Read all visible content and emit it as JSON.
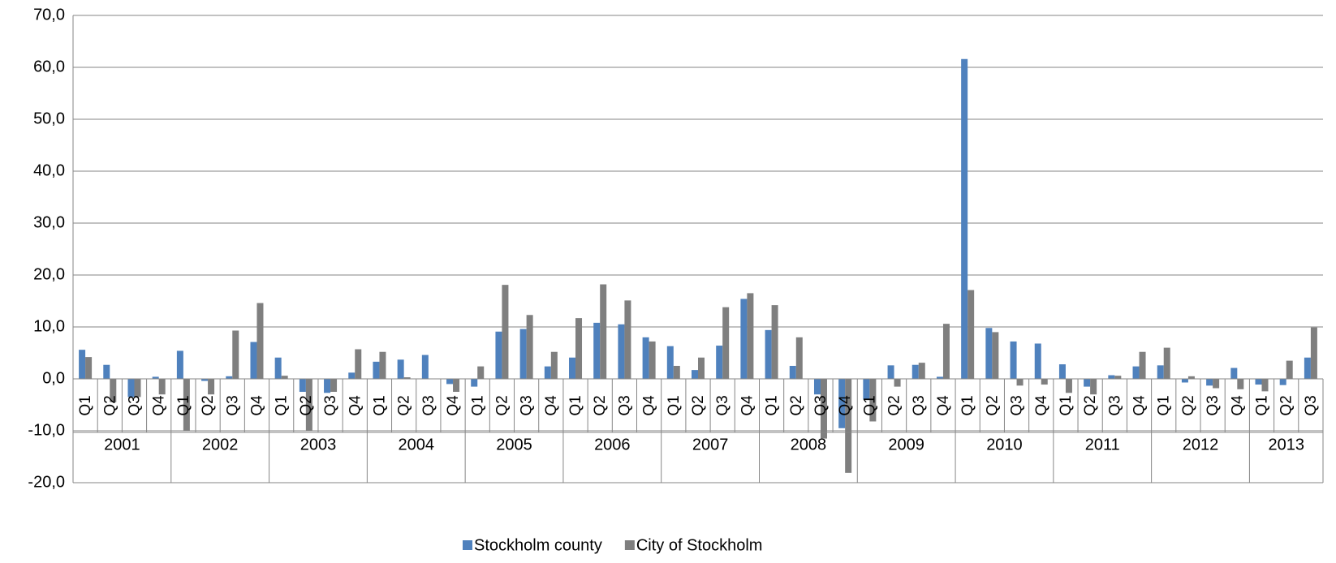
{
  "chart_data": {
    "type": "bar",
    "categories": [
      "Q1",
      "Q2",
      "Q3",
      "Q4",
      "Q1",
      "Q2",
      "Q3",
      "Q4",
      "Q1",
      "Q2",
      "Q3",
      "Q4",
      "Q1",
      "Q2",
      "Q3",
      "Q4",
      "Q1",
      "Q2",
      "Q3",
      "Q4",
      "Q1",
      "Q2",
      "Q3",
      "Q4",
      "Q1",
      "Q2",
      "Q3",
      "Q4",
      "Q1",
      "Q2",
      "Q3",
      "Q4",
      "Q1",
      "Q2",
      "Q3",
      "Q4",
      "Q1",
      "Q2",
      "Q3",
      "Q4",
      "Q1",
      "Q2",
      "Q3",
      "Q4",
      "Q1",
      "Q2",
      "Q3",
      "Q4",
      "Q1",
      "Q2",
      "Q3"
    ],
    "years": [
      "2001",
      "2002",
      "2003",
      "2004",
      "2005",
      "2006",
      "2007",
      "2008",
      "2009",
      "2010",
      "2011",
      "2012",
      "2013"
    ],
    "series": [
      {
        "name": "Stockholm county",
        "color": "#4f81bd",
        "values": [
          5.6,
          2.7,
          -3.5,
          0.4,
          5.4,
          -0.4,
          0.5,
          7.1,
          4.1,
          -2.5,
          -2.7,
          1.2,
          3.3,
          3.7,
          4.6,
          -1.0,
          -1.5,
          9.1,
          9.6,
          2.4,
          4.1,
          10.8,
          10.5,
          8.0,
          6.3,
          1.7,
          6.4,
          15.4,
          9.4,
          2.5,
          -3.0,
          -9.5,
          -4.0,
          2.6,
          2.7,
          0.4,
          61.6,
          9.8,
          7.2,
          6.8,
          2.8,
          -1.5,
          0.7,
          2.4,
          2.6,
          -0.7,
          -1.3,
          2.1,
          -1.1,
          -1.2,
          4.1
        ]
      },
      {
        "name": "City of Stockholm",
        "color": "#7f7f7f",
        "values": [
          4.2,
          -4.5,
          -3.5,
          -3.0,
          -10.0,
          -3.0,
          9.3,
          14.6,
          0.6,
          -10.0,
          -2.5,
          5.7,
          5.2,
          0.3,
          0.0,
          -2.5,
          2.4,
          18.1,
          12.3,
          5.2,
          11.7,
          18.2,
          15.1,
          7.2,
          2.5,
          4.1,
          13.8,
          16.5,
          14.2,
          8.0,
          -11.5,
          -18.1,
          -8.2,
          -1.5,
          3.1,
          10.6,
          17.1,
          9.0,
          -1.3,
          -1.1,
          -2.7,
          -3.0,
          0.6,
          5.2,
          6.0,
          0.5,
          -1.8,
          -2.0,
          -2.4,
          3.5,
          9.9
        ]
      }
    ],
    "ylim": [
      -20,
      70
    ],
    "yticks": [
      {
        "value": -20,
        "label": "-20,0"
      },
      {
        "value": -10,
        "label": "-10,0"
      },
      {
        "value": 0,
        "label": "0,0"
      },
      {
        "value": 10,
        "label": "10,0"
      },
      {
        "value": 20,
        "label": "20,0"
      },
      {
        "value": 30,
        "label": "30,0"
      },
      {
        "value": 40,
        "label": "40,0"
      },
      {
        "value": 50,
        "label": "50,0"
      },
      {
        "value": 60,
        "label": "60,0"
      },
      {
        "value": 70,
        "label": "70,0"
      }
    ],
    "grid": true,
    "legend": "bottom"
  }
}
